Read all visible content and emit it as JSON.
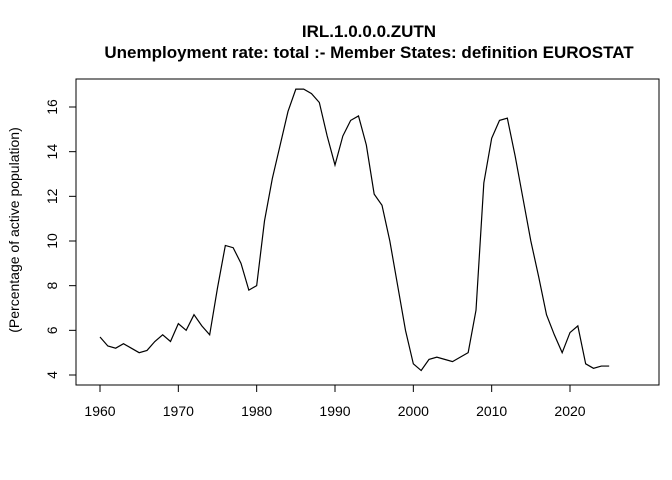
{
  "chart_data": {
    "type": "line",
    "title": "IRL.1.0.0.0.ZUTN",
    "subtitle": "Unemployment rate: total :- Member States: definition EUROSTAT",
    "xlabel": "",
    "ylabel": "(Percentage of active population)",
    "xlim": [
      1957,
      2027
    ],
    "ylim": [
      3.6,
      17.5
    ],
    "xticks": [
      1960,
      1970,
      1980,
      1990,
      2000,
      2010,
      2020
    ],
    "yticks": [
      4,
      6,
      8,
      10,
      12,
      14,
      16
    ],
    "grid": false,
    "legend": "none",
    "line_color": "#000000",
    "x": [
      1960,
      1961,
      1962,
      1963,
      1964,
      1965,
      1966,
      1967,
      1968,
      1969,
      1970,
      1971,
      1972,
      1973,
      1974,
      1975,
      1976,
      1977,
      1978,
      1979,
      1980,
      1981,
      1982,
      1983,
      1984,
      1985,
      1986,
      1987,
      1988,
      1989,
      1990,
      1991,
      1992,
      1993,
      1994,
      1995,
      1996,
      1997,
      1998,
      1999,
      2000,
      2001,
      2002,
      2003,
      2004,
      2005,
      2006,
      2007,
      2008,
      2009,
      2010,
      2011,
      2012,
      2013,
      2014,
      2015,
      2016,
      2017,
      2018,
      2019,
      2020,
      2021,
      2022,
      2023,
      2024,
      2025
    ],
    "y": [
      5.7,
      5.3,
      5.2,
      5.4,
      5.2,
      5.0,
      5.1,
      5.5,
      5.8,
      5.5,
      6.3,
      6.0,
      6.7,
      6.2,
      5.8,
      7.9,
      9.8,
      9.7,
      9.0,
      7.8,
      8.0,
      10.9,
      12.8,
      14.3,
      15.8,
      16.8,
      16.8,
      16.6,
      16.2,
      14.7,
      13.4,
      14.7,
      15.4,
      15.6,
      14.3,
      12.1,
      11.6,
      10.0,
      8.0,
      6.0,
      4.5,
      4.2,
      4.7,
      4.8,
      4.7,
      4.6,
      4.8,
      5.0,
      6.9,
      12.6,
      14.6,
      15.4,
      15.5,
      13.8,
      11.9,
      10.0,
      8.4,
      6.7,
      5.8,
      5.0,
      5.9,
      6.2,
      4.5,
      4.3,
      4.4,
      4.4
    ]
  }
}
